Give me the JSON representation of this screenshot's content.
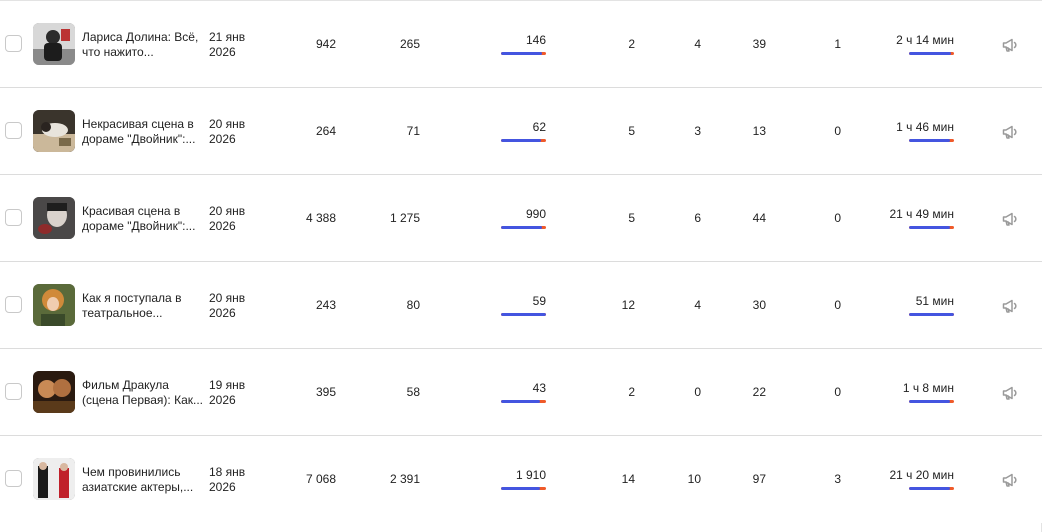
{
  "colors": {
    "bar_primary": "#4455e0",
    "bar_secondary": "#ef5a2a",
    "divider": "#dcdcdc"
  },
  "rows": [
    {
      "title": "Лариса Долина: Всё, что нажито...",
      "date_line1": "21 янв",
      "date_line2": "2026",
      "views": "942",
      "reach": "265",
      "full_views": "146",
      "full_ratio": 0.92,
      "col_a": "2",
      "col_b": "4",
      "col_c": "39",
      "col_d": "1",
      "watch_time": "2 ч 14 мин",
      "time_ratio": 0.93,
      "thumb_icon": "video-thumbnail"
    },
    {
      "title": "Некрасивая сцена в дораме \"Двойник\":...",
      "date_line1": "20 янв",
      "date_line2": "2026",
      "views": "264",
      "reach": "71",
      "full_views": "62",
      "full_ratio": 0.88,
      "col_a": "5",
      "col_b": "3",
      "col_c": "13",
      "col_d": "0",
      "watch_time": "1 ч 46 мин",
      "time_ratio": 0.9,
      "thumb_icon": "video-thumbnail"
    },
    {
      "title": "Красивая сцена в дораме \"Двойник\":...",
      "date_line1": "20 янв",
      "date_line2": "2026",
      "views": "4 388",
      "reach": "1 275",
      "full_views": "990",
      "full_ratio": 0.9,
      "col_a": "5",
      "col_b": "6",
      "col_c": "44",
      "col_d": "0",
      "watch_time": "21 ч 49 мин",
      "time_ratio": 0.9,
      "thumb_icon": "video-thumbnail"
    },
    {
      "title": "Как я поступала в театральное...",
      "date_line1": "20 янв",
      "date_line2": "2026",
      "views": "243",
      "reach": "80",
      "full_views": "59",
      "full_ratio": 1.0,
      "col_a": "12",
      "col_b": "4",
      "col_c": "30",
      "col_d": "0",
      "watch_time": "51 мин",
      "time_ratio": 1.0,
      "thumb_icon": "video-thumbnail"
    },
    {
      "title": "Фильм Дракула (сцена Первая): Как...",
      "date_line1": "19 янв",
      "date_line2": "2026",
      "views": "395",
      "reach": "58",
      "full_views": "43",
      "full_ratio": 0.86,
      "col_a": "2",
      "col_b": "0",
      "col_c": "22",
      "col_d": "0",
      "watch_time": "1 ч 8 мин",
      "time_ratio": 0.92,
      "thumb_icon": "video-thumbnail"
    },
    {
      "title": "Чем провинились азиатские актеры,...",
      "date_line1": "18 янв",
      "date_line2": "2026",
      "views": "7 068",
      "reach": "2 391",
      "full_views": "1 910",
      "full_ratio": 0.86,
      "col_a": "14",
      "col_b": "10",
      "col_c": "97",
      "col_d": "3",
      "watch_time": "21 ч 20 мин",
      "time_ratio": 0.9,
      "thumb_icon": "video-thumbnail"
    }
  ]
}
